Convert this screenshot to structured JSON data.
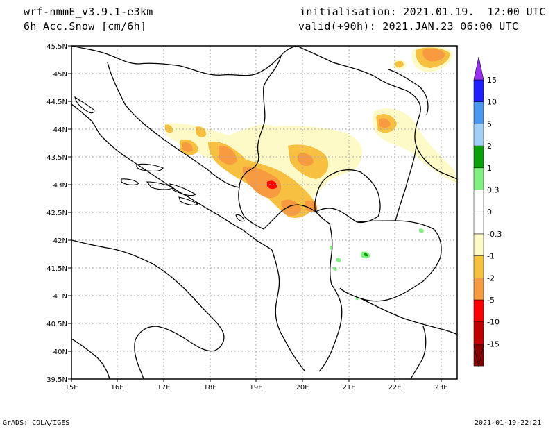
{
  "header": {
    "model": "wrf-nmmE_v3.9.1-e3km",
    "field": "6h Acc.Snow [cm/6h]",
    "init": "initialisation: 2021.01.19.  12:00 UTC",
    "valid": "valid(+90h): 2021.JAN.23 06:00 UTC"
  },
  "map": {
    "lat_labels": [
      "45.5N",
      "45N",
      "44.5N",
      "44N",
      "43.5N",
      "43N",
      "42.5N",
      "42N",
      "41.5N",
      "41N",
      "40.5N",
      "40N",
      "39.5N"
    ],
    "lon_labels": [
      "15E",
      "16E",
      "17E",
      "18E",
      "19E",
      "20E",
      "21E",
      "22E",
      "23E"
    ]
  },
  "colorbar": {
    "labels": [
      "15",
      "10",
      "5",
      "2",
      "1",
      "0.3",
      "0",
      "-0.3",
      "-1",
      "-2",
      "-5",
      "-10",
      "-15"
    ],
    "colors": [
      "#2020ff",
      "#4a98f0",
      "#a0d0f8",
      "#0aa00a",
      "#80f080",
      "#ffffff",
      "#ffffff",
      "#fefac8",
      "#f8c040",
      "#f89a40",
      "#ff0000",
      "#c00000",
      "#880000"
    ],
    "top_color": "#9a30f0",
    "bottom_color": "#880000"
  },
  "footer": {
    "left": "GrADS: COLA/IGES",
    "right": "2021-01-19-22:21"
  }
}
